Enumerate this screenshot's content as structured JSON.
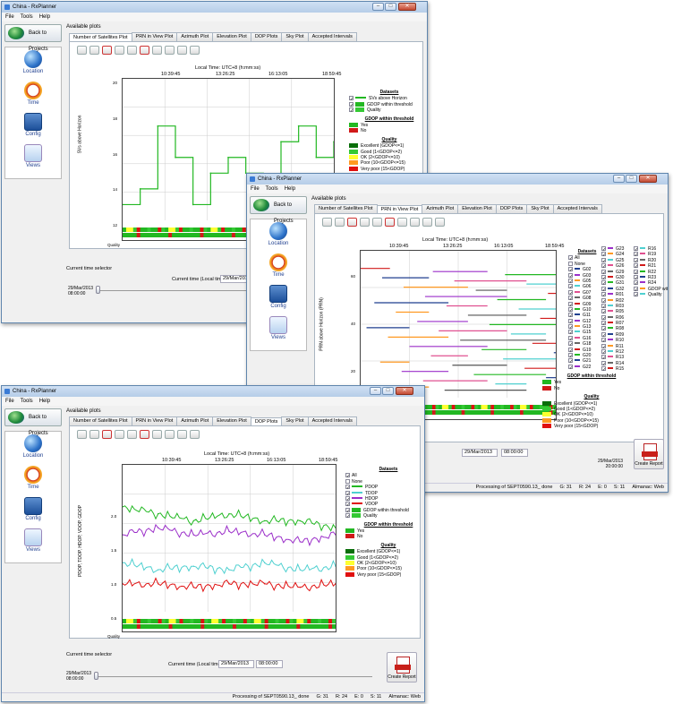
{
  "app": {
    "title": "China - RxPlanner",
    "menu": [
      "File",
      "Tools",
      "Help"
    ],
    "back_label": "Back to Projects",
    "nav": [
      "Location",
      "Time",
      "Config",
      "Views"
    ],
    "available_plots": "Available plots",
    "tabs": [
      "Number of Satellites Plot",
      "PRN in View Plot",
      "Azimuth Plot",
      "Elevation Plot",
      "DOP Plots",
      "Sky Plot",
      "Accepted Intervals"
    ],
    "time_axis_title": "Local Time: UTC+8 (h:mm:ss)",
    "time_ticks": [
      "10:39:45",
      "13:26:25",
      "16:13:05",
      "18:59:45"
    ],
    "current_time_selector": "Current time selector",
    "current_time_label": "Current time (Local time):",
    "current_date": "29/Mar/2013",
    "current_clock": "08:00:00",
    "slider_start": "29/Mar/2013\n08:00:00",
    "slider_end": "29/Mar/2013\n20:00:00",
    "create_report": "Create Report",
    "status": {
      "processing": "Processing of SEPT0590.13_ done",
      "g": "G: 31",
      "r": "R: 24",
      "e": "E: 0",
      "s": "S: 11",
      "almanac": "Almanac: Web"
    },
    "quality_lane": "Quality",
    "gdop_lane": "GDOP within threshold",
    "gdop_title": "GDOP within threshold",
    "gdop_yes": "Yes",
    "gdop_no": "No",
    "quality_title": "Quality",
    "quality_items": [
      "Excellent (GDOP<=1)",
      "Good (1<GDOP<=2)",
      "OK (2<GDOP<=10)",
      "Poor (10<GDOP<=15)",
      "Very poor (15<GDOP)"
    ],
    "datasets_title": "Datasets",
    "colors": {
      "green": "#22b822",
      "red": "#d11a1a",
      "excellent": "#0a6e0a",
      "good": "#34c934",
      "ok": "#ffff30",
      "poor": "#ff9922",
      "verypoor": "#e01010",
      "accent": "#1f3f8f"
    }
  },
  "win_sats": {
    "ylabel": "SVs above Horizon",
    "datasets": [
      "SVs above Horizon",
      "GDOP within threshold",
      "Quality"
    ],
    "yticks": [
      "20",
      "18",
      "16",
      "14",
      "12"
    ],
    "chart_data": {
      "type": "line",
      "title": "Local Time: UTC+8 (h:mm:ss)",
      "ylabel": "SVs above Horizon",
      "x": [
        "08:00",
        "09:00",
        "10:00",
        "11:00",
        "12:00",
        "13:00",
        "14:00",
        "15:00",
        "16:00",
        "17:00",
        "18:00",
        "19:00",
        "20:00"
      ],
      "values": [
        12,
        13,
        17,
        15,
        12,
        14,
        15,
        14,
        13,
        16,
        17,
        15,
        16
      ],
      "ylim": [
        11,
        20
      ]
    }
  },
  "win_prn": {
    "ylabel": "PRN above Horizon (PRN)",
    "yticks": [
      "60",
      "40",
      "20"
    ],
    "datasets_col1": [
      "All",
      "None",
      "G02",
      "G03",
      "G05",
      "G06",
      "G07",
      "G08",
      "G09",
      "G10",
      "G11",
      "G12",
      "G13",
      "G15",
      "G16",
      "G18",
      "G19",
      "G20",
      "G21",
      "G22"
    ],
    "datasets_col2": [
      "G23",
      "G24",
      "G25",
      "G26",
      "G29",
      "G30",
      "G31",
      "G32",
      "R01",
      "R02",
      "R03",
      "R05",
      "R06",
      "R07",
      "R08",
      "R09",
      "R10",
      "R11",
      "R12",
      "R13",
      "R14",
      "R15"
    ],
    "datasets_col3": [
      "R16",
      "R19",
      "R20",
      "R21",
      "R22",
      "R23",
      "R24",
      "GDOP within threshold",
      "Quality"
    ]
  },
  "win_dop": {
    "ylabel": "PDOP, TDOP, HDOP, VDOP, GDOP",
    "yticks": [
      "2.0",
      "1.5",
      "1.0",
      "0.5"
    ],
    "datasets": [
      "All",
      "None",
      "PDOP",
      "TDOP",
      "HDOP",
      "VDOP",
      "GDOP within threshold",
      "Quality"
    ],
    "chart_data": {
      "type": "line",
      "title": "Local Time: UTC+8 (h:mm:ss)",
      "ylabel": "PDOP, TDOP, HDOP, VDOP, GDOP",
      "x": [
        "08:00",
        "10:00",
        "12:00",
        "14:00",
        "16:00",
        "18:00",
        "20:00"
      ],
      "series": [
        {
          "name": "PDOP",
          "values": [
            1.7,
            1.6,
            1.5,
            1.6,
            1.5,
            1.5,
            1.4
          ]
        },
        {
          "name": "TDOP",
          "values": [
            0.9,
            0.8,
            0.85,
            0.8,
            0.9,
            0.8,
            0.85
          ]
        },
        {
          "name": "HDOP",
          "values": [
            1.3,
            1.4,
            1.3,
            1.35,
            1.3,
            1.2,
            1.3
          ]
        },
        {
          "name": "VDOP",
          "values": [
            0.6,
            0.6,
            0.55,
            0.6,
            0.6,
            0.55,
            0.6
          ]
        }
      ],
      "ylim": [
        0.2,
        2.3
      ]
    }
  }
}
